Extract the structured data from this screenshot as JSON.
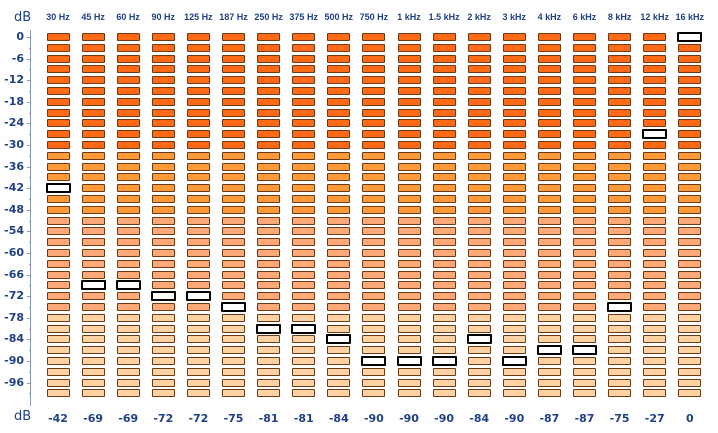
{
  "units": {
    "top": "dB",
    "bottom": "dB"
  },
  "bands": [
    "30 Hz",
    "45 Hz",
    "60 Hz",
    "90 Hz",
    "125 Hz",
    "187 Hz",
    "250 Hz",
    "375 Hz",
    "500 Hz",
    "750 Hz",
    "1 kHz",
    "1.5 kHz",
    "2 kHz",
    "3 kHz",
    "4 kHz",
    "6 kHz",
    "8 kHz",
    "12 kHz",
    "16 kHz"
  ],
  "peak_values": [
    "-42",
    "-69",
    "-69",
    "-72",
    "-72",
    "-75",
    "-81",
    "-81",
    "-84",
    "-90",
    "-90",
    "-90",
    "-84",
    "-90",
    "-87",
    "-87",
    "-75",
    "-27",
    "0"
  ],
  "tick_labels": [
    "0",
    "-6",
    "-12",
    "-18",
    "-24",
    "-30",
    "-36",
    "-42",
    "-48",
    "-54",
    "-60",
    "-66",
    "-72",
    "-78",
    "-84",
    "-90",
    "-96"
  ],
  "scale": {
    "min_db": -100,
    "max_db": 0,
    "step_db": 3
  },
  "colors": {
    "hot": "#ff6a18",
    "warm": "#ff9a3a",
    "mid": "#ffa878",
    "cool": "#ffd2a4",
    "peak_outline": "#000000",
    "text": "#1f3f86"
  }
}
